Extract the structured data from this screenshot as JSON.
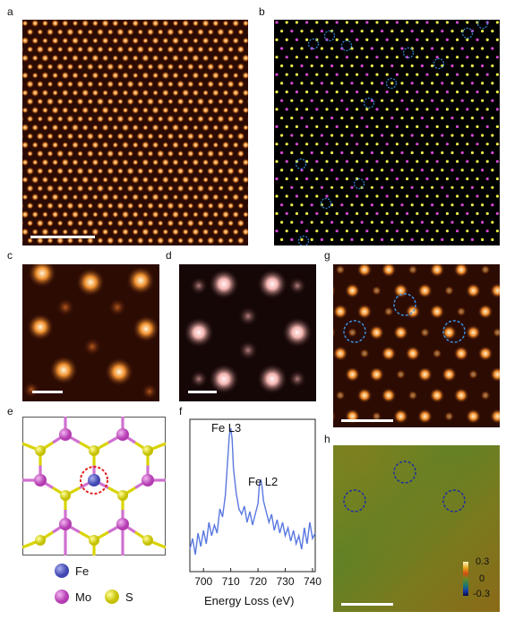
{
  "figure": {
    "panel_labels": [
      "a",
      "b",
      "c",
      "d",
      "e",
      "f",
      "g",
      "h"
    ]
  },
  "panel_e": {
    "legend": [
      {
        "label": "Fe",
        "color": "#5b62c9"
      },
      {
        "label": "Mo",
        "color": "#c94fc7"
      },
      {
        "label": "S",
        "color": "#d9d400"
      }
    ]
  },
  "panel_f": {
    "peak_labels": [
      "Fe L3",
      "Fe L2"
    ],
    "xlabel": "Energy Loss (eV)",
    "xticks": [
      "700",
      "710",
      "720",
      "730",
      "740"
    ]
  },
  "panel_h": {
    "colorbar_ticks": [
      "0.3",
      "0",
      "-0.3"
    ]
  },
  "chart_data": {
    "type": "line",
    "title": "",
    "xlabel": "Energy Loss (eV)",
    "ylabel": "",
    "xlim": [
      695,
      741
    ],
    "x": [
      695,
      696,
      697,
      698,
      699,
      700,
      701,
      702,
      703,
      704,
      705,
      706,
      707,
      708,
      709,
      709.5,
      710,
      710.5,
      711,
      712,
      713,
      714,
      715,
      716,
      717,
      718,
      719,
      720,
      720.5,
      721,
      721.5,
      722,
      723,
      724,
      725,
      726,
      727,
      728,
      729,
      730,
      731,
      732,
      733,
      734,
      735,
      736,
      737,
      738,
      739,
      740,
      741
    ],
    "y": [
      0.1,
      0.18,
      0.06,
      0.22,
      0.12,
      0.24,
      0.14,
      0.3,
      0.2,
      0.28,
      0.22,
      0.4,
      0.34,
      0.5,
      0.8,
      0.95,
      1.0,
      0.92,
      0.7,
      0.52,
      0.4,
      0.36,
      0.42,
      0.3,
      0.38,
      0.28,
      0.36,
      0.44,
      0.58,
      0.62,
      0.56,
      0.46,
      0.38,
      0.3,
      0.36,
      0.24,
      0.32,
      0.22,
      0.3,
      0.2,
      0.26,
      0.16,
      0.24,
      0.14,
      0.2,
      0.1,
      0.26,
      0.14,
      0.3,
      0.18,
      0.22
    ]
  }
}
